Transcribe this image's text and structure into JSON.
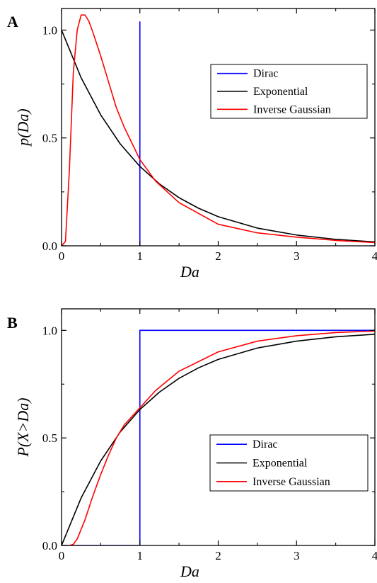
{
  "chart_data": [
    {
      "type": "line",
      "panel_label": "A",
      "xlabel": "Da",
      "ylabel": "p(Da)",
      "xlim": [
        0,
        4.0
      ],
      "ylim": [
        0,
        1.1
      ],
      "xticks": [
        "0",
        "1",
        "2",
        "3",
        "4"
      ],
      "yticks": [
        "0.0",
        "0.5",
        "1.0"
      ],
      "legend_position": "right, upper-middle",
      "series": [
        {
          "name": "Dirac",
          "color": "#0000ff",
          "x": [
            1.0,
            1.0
          ],
          "y": [
            0.0,
            1.04
          ]
        },
        {
          "name": "Exponential",
          "color": "#000000",
          "x": [
            0,
            0.25,
            0.5,
            0.75,
            1.0,
            1.25,
            1.5,
            1.75,
            2.0,
            2.5,
            3.0,
            3.5,
            4.0
          ],
          "y": [
            1.0,
            0.779,
            0.607,
            0.472,
            0.368,
            0.287,
            0.223,
            0.174,
            0.135,
            0.082,
            0.05,
            0.03,
            0.018
          ]
        },
        {
          "name": "Inverse Gaussian",
          "color": "#ff0000",
          "x": [
            0,
            0.05,
            0.1,
            0.15,
            0.2,
            0.25,
            0.3,
            0.35,
            0.4,
            0.5,
            0.6,
            0.7,
            0.8,
            1.0,
            1.2,
            1.5,
            2.0,
            2.5,
            3.0,
            3.5,
            4.0
          ],
          "y": [
            0,
            0.02,
            0.35,
            0.8,
            1.0,
            1.07,
            1.07,
            1.04,
            0.99,
            0.88,
            0.76,
            0.64,
            0.55,
            0.4,
            0.3,
            0.2,
            0.1,
            0.06,
            0.04,
            0.025,
            0.015
          ]
        }
      ]
    },
    {
      "type": "line",
      "panel_label": "B",
      "xlabel": "Da",
      "ylabel": "P(X>Da)",
      "xlim": [
        0,
        4.0
      ],
      "ylim": [
        0,
        1.1
      ],
      "xticks": [
        "0",
        "1",
        "2",
        "3",
        "4"
      ],
      "yticks": [
        "0.0",
        "0.5",
        "1.0"
      ],
      "legend_position": "right, lower-middle",
      "series": [
        {
          "name": "Dirac",
          "color": "#0000ff",
          "x": [
            0,
            1.0,
            1.0,
            4.0
          ],
          "y": [
            0,
            0,
            1.0,
            1.0
          ]
        },
        {
          "name": "Exponential",
          "color": "#000000",
          "x": [
            0,
            0.25,
            0.5,
            0.75,
            1.0,
            1.25,
            1.5,
            1.75,
            2.0,
            2.5,
            3.0,
            3.5,
            4.0
          ],
          "y": [
            0,
            0.221,
            0.393,
            0.528,
            0.632,
            0.713,
            0.777,
            0.826,
            0.865,
            0.918,
            0.95,
            0.97,
            0.982
          ]
        },
        {
          "name": "Inverse Gaussian",
          "color": "#ff0000",
          "x": [
            0,
            0.1,
            0.15,
            0.2,
            0.3,
            0.4,
            0.5,
            0.6,
            0.7,
            0.8,
            0.9,
            1.0,
            1.2,
            1.5,
            2.0,
            2.5,
            3.0,
            3.5,
            4.0
          ],
          "y": [
            0,
            0.0,
            0.005,
            0.03,
            0.12,
            0.23,
            0.33,
            0.42,
            0.5,
            0.56,
            0.6,
            0.64,
            0.72,
            0.81,
            0.9,
            0.95,
            0.975,
            0.99,
            0.997
          ]
        }
      ]
    }
  ]
}
